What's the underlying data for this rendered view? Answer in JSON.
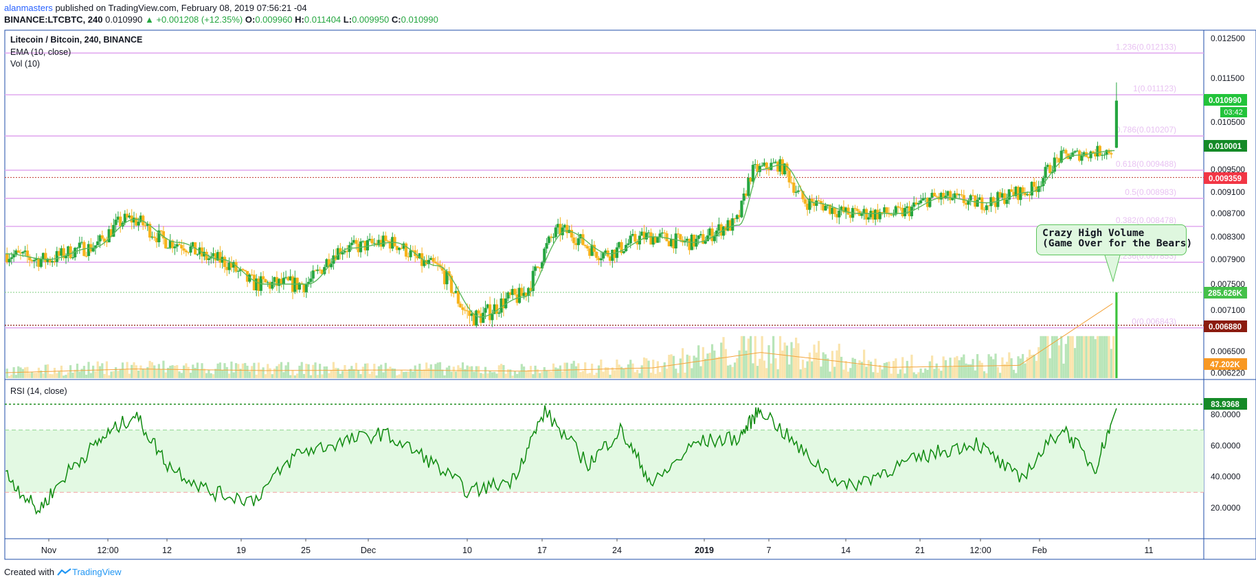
{
  "header": {
    "user": "alanmasters",
    "published_text": "published on TradingView.com, February 08, 2019 07:56:21 -04",
    "symbol": "BINANCE:LTCBTC, 240",
    "last": "0.010990",
    "change": "▲ +0.001208 (+12.35%)",
    "o_label": "O:",
    "o_value": "0.009960",
    "h_label": "H:",
    "h_value": "0.011404",
    "l_label": "L:",
    "l_value": "0.009950",
    "c_label": "C:",
    "c_value": "0.010990"
  },
  "legend": {
    "title": "Litecoin / Bitcoin, 240, BINANCE",
    "ema": "EMA (10, close)",
    "vol": "Vol (10)",
    "rsi": "RSI (14, close)"
  },
  "annotation": {
    "line1": "Crazy High Volume",
    "line2": "(Game Over for the Bears)"
  },
  "footer": {
    "created_with": "Created with",
    "brand": "TradingView"
  },
  "colors": {
    "up": "#26a641",
    "down": "#f7b31b",
    "ema": "#5cb85c",
    "fib": "#e1a9ef",
    "rsi": "#0f8a0f",
    "rsi_band": "#e3f9e3",
    "border": "#1f4ea8"
  },
  "chart_data": [
    {
      "type": "candlestick",
      "title": "Litecoin / Bitcoin, 240, BINANCE",
      "x_tick_labels": [
        "Nov",
        "12:00",
        "12",
        "19",
        "25",
        "Dec",
        "10",
        "17",
        "24",
        "2019",
        "7",
        "14",
        "21",
        "12:00",
        "Feb",
        "11"
      ],
      "y_tick_labels": [
        "0.012500",
        "0.011500",
        "0.010500",
        "0.009500",
        "0.009100",
        "0.008700",
        "0.008300",
        "0.007900",
        "0.007500",
        "0.007100",
        "0.006500",
        "0.006220"
      ],
      "ylim": [
        0.0062,
        0.0128
      ],
      "series": [
        {
          "name": "EMA (10, close)",
          "x": [
            "Oct 28",
            "Nov 1",
            "Nov 5",
            "Nov 9",
            "Nov 13",
            "Nov 17",
            "Nov 21",
            "Nov 25",
            "Nov 29",
            "Dec 3",
            "Dec 7",
            "Dec 11",
            "Dec 15",
            "Dec 19",
            "Dec 23",
            "Dec 27",
            "Dec 31",
            "Jan 4",
            "Jan 6",
            "Jan 8",
            "Jan 11",
            "Jan 15",
            "Jan 19",
            "Jan 23",
            "Jan 27",
            "Jan 31",
            "Feb 4",
            "Feb 8"
          ],
          "values": [
            0.008,
            0.0079,
            0.0081,
            0.0086,
            0.0082,
            0.0079,
            0.0075,
            0.0075,
            0.0081,
            0.0082,
            0.0078,
            0.007,
            0.0073,
            0.0084,
            0.008,
            0.0083,
            0.0082,
            0.0085,
            0.0095,
            0.0096,
            0.0089,
            0.0087,
            0.0087,
            0.009,
            0.0089,
            0.0091,
            0.0098,
            0.0099
          ]
        },
        {
          "name": "Vol (10)",
          "x": [
            "Oct 28",
            "Nov 9",
            "Nov 21",
            "Dec 3",
            "Dec 15",
            "Dec 27",
            "Jan 6",
            "Jan 18",
            "Jan 30",
            "Feb 8"
          ],
          "values": [
            20000,
            34000,
            28000,
            30000,
            26000,
            38000,
            95000,
            40000,
            47202,
            285626
          ]
        },
        {
          "name": "RSI (14, close)",
          "x": [
            "Oct 28",
            "Oct 31",
            "Nov 3",
            "Nov 6",
            "Nov 9",
            "Nov 12",
            "Nov 16",
            "Nov 20",
            "Nov 24",
            "Nov 28",
            "Dec 2",
            "Dec 6",
            "Dec 10",
            "Dec 14",
            "Dec 17",
            "Dec 21",
            "Dec 24",
            "Dec 27",
            "Dec 31",
            "Jan 4",
            "Jan 6",
            "Jan 10",
            "Jan 14",
            "Jan 18",
            "Jan 22",
            "Jan 26",
            "Jan 30",
            "Feb 3",
            "Feb 6",
            "Feb 8"
          ],
          "values": [
            42,
            18,
            45,
            65,
            80,
            48,
            30,
            25,
            55,
            62,
            68,
            52,
            30,
            38,
            82,
            48,
            70,
            35,
            62,
            65,
            84,
            55,
            33,
            45,
            55,
            62,
            38,
            72,
            45,
            83.9368
          ]
        }
      ],
      "fibonacci": [
        {
          "label": "1.236(0.012133)",
          "value": 0.012133
        },
        {
          "label": "1(0.011123)",
          "value": 0.011123
        },
        {
          "label": "0.786(0.010207)",
          "value": 0.010207
        },
        {
          "label": "0.618(0.009488)",
          "value": 0.009488
        },
        {
          "label": "0.5(0.008983)",
          "value": 0.008983
        },
        {
          "label": "0.382(0.008478)",
          "value": 0.008478
        },
        {
          "label": "0.236(0.007853)",
          "value": 0.007853
        },
        {
          "label": "0(0.006843)",
          "value": 0.006843
        }
      ],
      "price_badges": [
        {
          "text": "0.010990",
          "sub": "03:42",
          "color": "#22c33a"
        },
        {
          "text": "0.010001",
          "color": "#148a27"
        },
        {
          "text": "0.009359",
          "color": "#f23645"
        },
        {
          "text": "285.626K",
          "color": "#44c149"
        },
        {
          "text": "0.006880",
          "color": "#8b1b0f"
        },
        {
          "text": "47.202K",
          "color": "#f89822"
        }
      ]
    },
    {
      "type": "line",
      "title": "RSI (14, close)",
      "y_tick_labels": [
        "80.0000",
        "60.0000",
        "40.0000",
        "20.0000"
      ],
      "ylim": [
        0,
        100
      ],
      "bands": [
        70,
        30
      ],
      "last_value": "83.9368"
    }
  ]
}
